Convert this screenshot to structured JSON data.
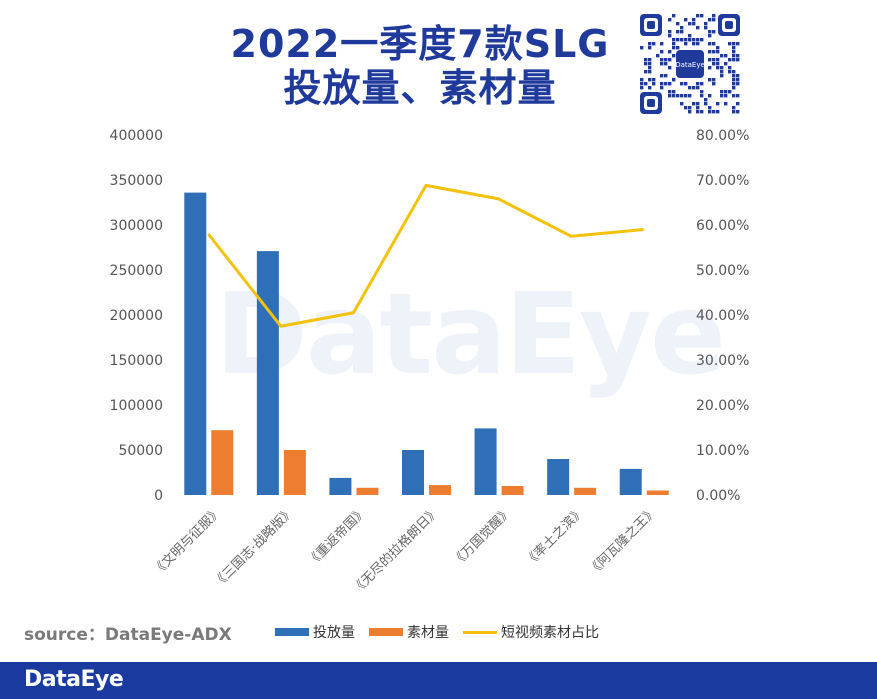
{
  "title_line1": "2022一季度7款SLG",
  "title_line2": "投放量、素材量",
  "source": "source：DataEye-ADX",
  "watermark": "DataEye",
  "footer_logo": "DataEye",
  "qr_label": "DataEye",
  "colors": {
    "title": "#1f3a9a",
    "bar1": "#2e6fb8",
    "bar2": "#ed7d31",
    "line": "#f4c20d",
    "footer": "#1a3aa0"
  },
  "chart_data": {
    "type": "bar",
    "categories": [
      "《文明与征服》",
      "《三国志·战略版》",
      "《重返帝国》",
      "《无尽的拉格朗日》",
      "《万国觉醒》",
      "《率土之滨》",
      "《阿瓦隆之王》"
    ],
    "series": [
      {
        "name": "投放量",
        "type": "bar",
        "axis": "left",
        "values": [
          336000,
          271000,
          19000,
          50000,
          74000,
          40000,
          29000
        ]
      },
      {
        "name": "素材量",
        "type": "bar",
        "axis": "left",
        "values": [
          72000,
          50000,
          8000,
          11000,
          10000,
          8000,
          5000
        ]
      },
      {
        "name": "短视频素材占比",
        "type": "line",
        "axis": "right",
        "values": [
          58.0,
          37.5,
          40.5,
          68.8,
          65.8,
          57.5,
          59.0
        ]
      }
    ],
    "left_axis": {
      "min": 0,
      "max": 400000,
      "ticks": [
        "0",
        "50000",
        "100000",
        "150000",
        "200000",
        "250000",
        "300000",
        "350000",
        "400000"
      ]
    },
    "right_axis": {
      "min": 0,
      "max": 80,
      "ticks": [
        "0.00%",
        "10.00%",
        "20.00%",
        "30.00%",
        "40.00%",
        "50.00%",
        "60.00%",
        "70.00%",
        "80.00%"
      ]
    },
    "grid": false,
    "legend_position": "bottom"
  }
}
